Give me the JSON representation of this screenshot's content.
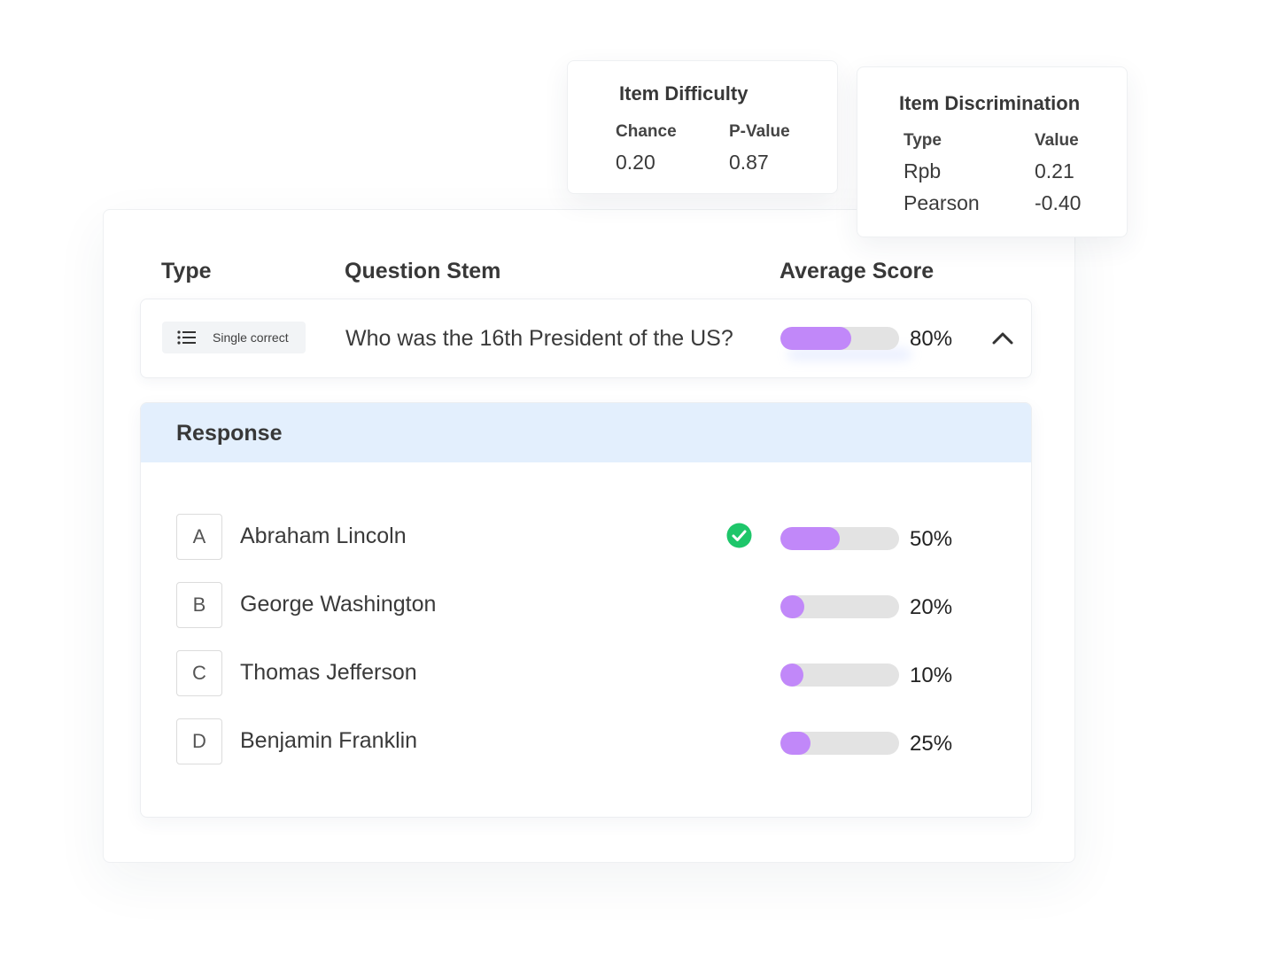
{
  "table": {
    "headers": {
      "type": "Type",
      "stem": "Question Stem",
      "avg": "Average Score"
    }
  },
  "question": {
    "type_label": "Single correct",
    "type_icon": "list-icon",
    "stem": "Who was the 16th President of the US?",
    "average_score": 0.8,
    "average_label": "80%",
    "expand_icon": "chevron-up-icon"
  },
  "response": {
    "title": "Response",
    "options": [
      {
        "letter": "A",
        "text": "Abraham Lincoln",
        "correct": true,
        "score": 0.5,
        "label": "50%"
      },
      {
        "letter": "B",
        "text": "George Washington",
        "correct": false,
        "score": 0.2,
        "label": "20%"
      },
      {
        "letter": "C",
        "text": "Thomas Jefferson",
        "correct": false,
        "score": 0.1,
        "label": "10%"
      },
      {
        "letter": "D",
        "text": "Benjamin Franklin",
        "correct": false,
        "score": 0.25,
        "label": "25%"
      }
    ],
    "correct_icon": "check-circle-icon"
  },
  "difficulty": {
    "title": "Item Difficulty",
    "col1": "Chance",
    "col2": "P-Value",
    "chance": "0.20",
    "p_value": "0.87"
  },
  "discrimination": {
    "title": "Item Discrimination",
    "col1": "Type",
    "col2": "Value",
    "rows": [
      {
        "type": "Rpb",
        "value": "0.21"
      },
      {
        "type": "Pearson",
        "value": "-0.40"
      }
    ]
  },
  "colors": {
    "bar_fill": "#c188f9",
    "bar_track": "#e3e3e3",
    "response_header": "#e3effd",
    "correct": "#1ec66a"
  }
}
